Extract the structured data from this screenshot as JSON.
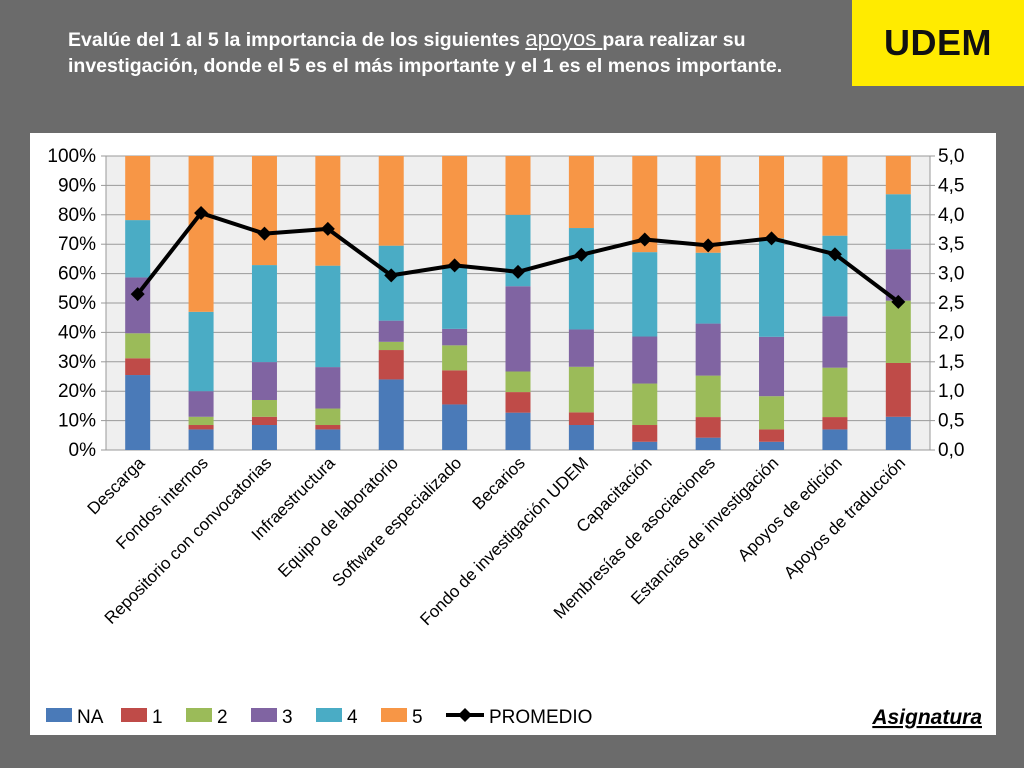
{
  "slide": {
    "title_part1": "Evalúe del 1 al 5 la importancia de los siguientes ",
    "title_emph": "apoyos ",
    "title_part2": "para realizar su investigación, donde el 5 es el más importante y el 1 es el menos importante.",
    "logo": "UDEM",
    "footer_label": "Asignatura"
  },
  "colors": {
    "NA": "#4a7ab8",
    "1": "#bf4b48",
    "2": "#9bbb59",
    "3": "#8064a2",
    "4": "#4aacc5",
    "5": "#f79646",
    "line": "#000000",
    "plot_bg": "#efefef",
    "grid": "#9a9a9a",
    "logo_bg": "#ffeb00",
    "slide_bg": "#6b6b6b"
  },
  "chart_data": {
    "type": "bar",
    "stacked": true,
    "stack_mode": "percent",
    "categories": [
      "Descarga",
      "Fondos internos",
      "Repositorio con convocatorias",
      "Infraestructura",
      "Equipo de laboratorio",
      "Software especializado",
      "Becarios",
      "Fondo de investigación UDEM",
      "Capacitación",
      "Membresías de asociaciones",
      "Estancias de investigación",
      "Apoyos de edición",
      "Apoyos de traducción"
    ],
    "series": [
      {
        "name": "NA",
        "values": [
          25.5,
          7,
          8.5,
          7,
          24,
          15.5,
          12.7,
          8.5,
          2.8,
          4.2,
          2.8,
          7,
          11.3
        ]
      },
      {
        "name": "1",
        "values": [
          5.7,
          1.5,
          2.8,
          1.5,
          10,
          11.6,
          7,
          4.3,
          5.7,
          7,
          4.2,
          4.2,
          18.3
        ]
      },
      {
        "name": "2",
        "values": [
          8.5,
          2.8,
          5.7,
          5.6,
          2.8,
          8.5,
          7,
          15.5,
          14.1,
          14.1,
          11.3,
          16.8,
          21.2
        ]
      },
      {
        "name": "3",
        "values": [
          19,
          8.7,
          12.9,
          14.1,
          7.2,
          5.6,
          29,
          12.7,
          16,
          17.7,
          20.2,
          17.5,
          17.5
        ]
      },
      {
        "name": "4",
        "values": [
          19.5,
          27,
          33,
          34.5,
          25.5,
          20.8,
          24.3,
          34.5,
          28.7,
          24.1,
          33.5,
          27.4,
          18.7
        ]
      },
      {
        "name": "5",
        "values": [
          21.8,
          53,
          37.1,
          37.3,
          30.5,
          38,
          20,
          24.5,
          32.7,
          32.9,
          28,
          27.1,
          13
        ]
      }
    ],
    "line_series": {
      "name": "PROMEDIO",
      "axis": "right",
      "values": [
        2.65,
        4.03,
        3.68,
        3.76,
        2.97,
        3.14,
        3.03,
        3.32,
        3.58,
        3.48,
        3.6,
        3.33,
        2.52
      ]
    },
    "y_left": {
      "ylim": [
        0,
        100
      ],
      "ticks": [
        "0%",
        "10%",
        "20%",
        "30%",
        "40%",
        "50%",
        "60%",
        "70%",
        "80%",
        "90%",
        "100%"
      ]
    },
    "y_right": {
      "ylim": [
        0,
        5
      ],
      "ticks": [
        "0,0",
        "0,5",
        "1,0",
        "1,5",
        "2,0",
        "2,5",
        "3,0",
        "3,5",
        "4,0",
        "4,5",
        "5,0"
      ]
    },
    "grid": true,
    "legend_position": "bottom"
  }
}
